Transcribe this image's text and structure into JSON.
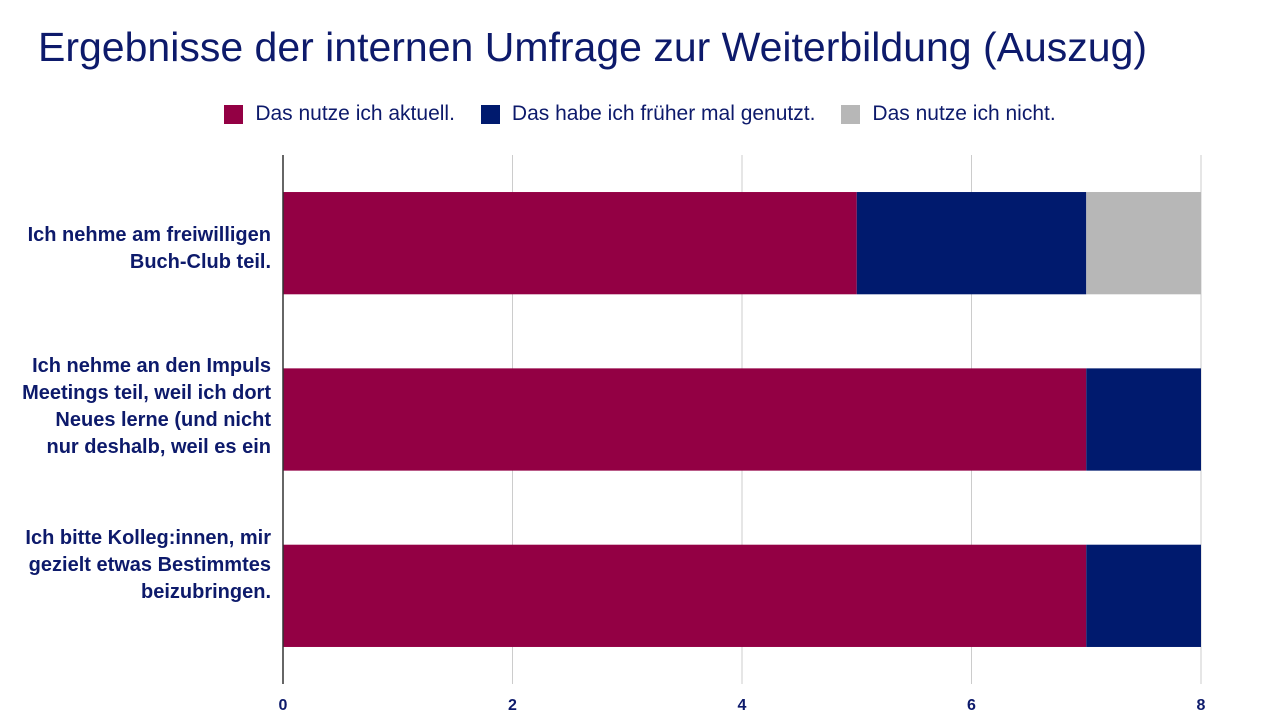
{
  "chart_data": {
    "type": "bar",
    "orientation": "horizontal",
    "stacked": true,
    "title": "Ergebnisse der internen Umfrage zur Weiterbildung (Auszug)",
    "categories": [
      "Ich nehme am freiwilligen Buch-Club teil.",
      "Ich nehme an den Impuls Meetings teil, weil ich dort Neues lerne (und nicht nur deshalb, weil es ein",
      "Ich bitte Kolleg:innen, mir gezielt etwas Bestimmtes beizubringen."
    ],
    "series": [
      {
        "name": "Das nutze ich aktuell.",
        "color": "#930044",
        "values": [
          5,
          7,
          7
        ]
      },
      {
        "name": "Das habe ich früher mal genutzt.",
        "color": "#001a6e",
        "values": [
          2,
          1,
          1
        ]
      },
      {
        "name": "Das nutze ich nicht.",
        "color": "#b7b7b7",
        "values": [
          1,
          0,
          0
        ]
      }
    ],
    "xlim": [
      0,
      8
    ],
    "xticks": [
      "0",
      "2",
      "4",
      "6",
      "8"
    ],
    "grid": true,
    "legend_position": "top"
  }
}
